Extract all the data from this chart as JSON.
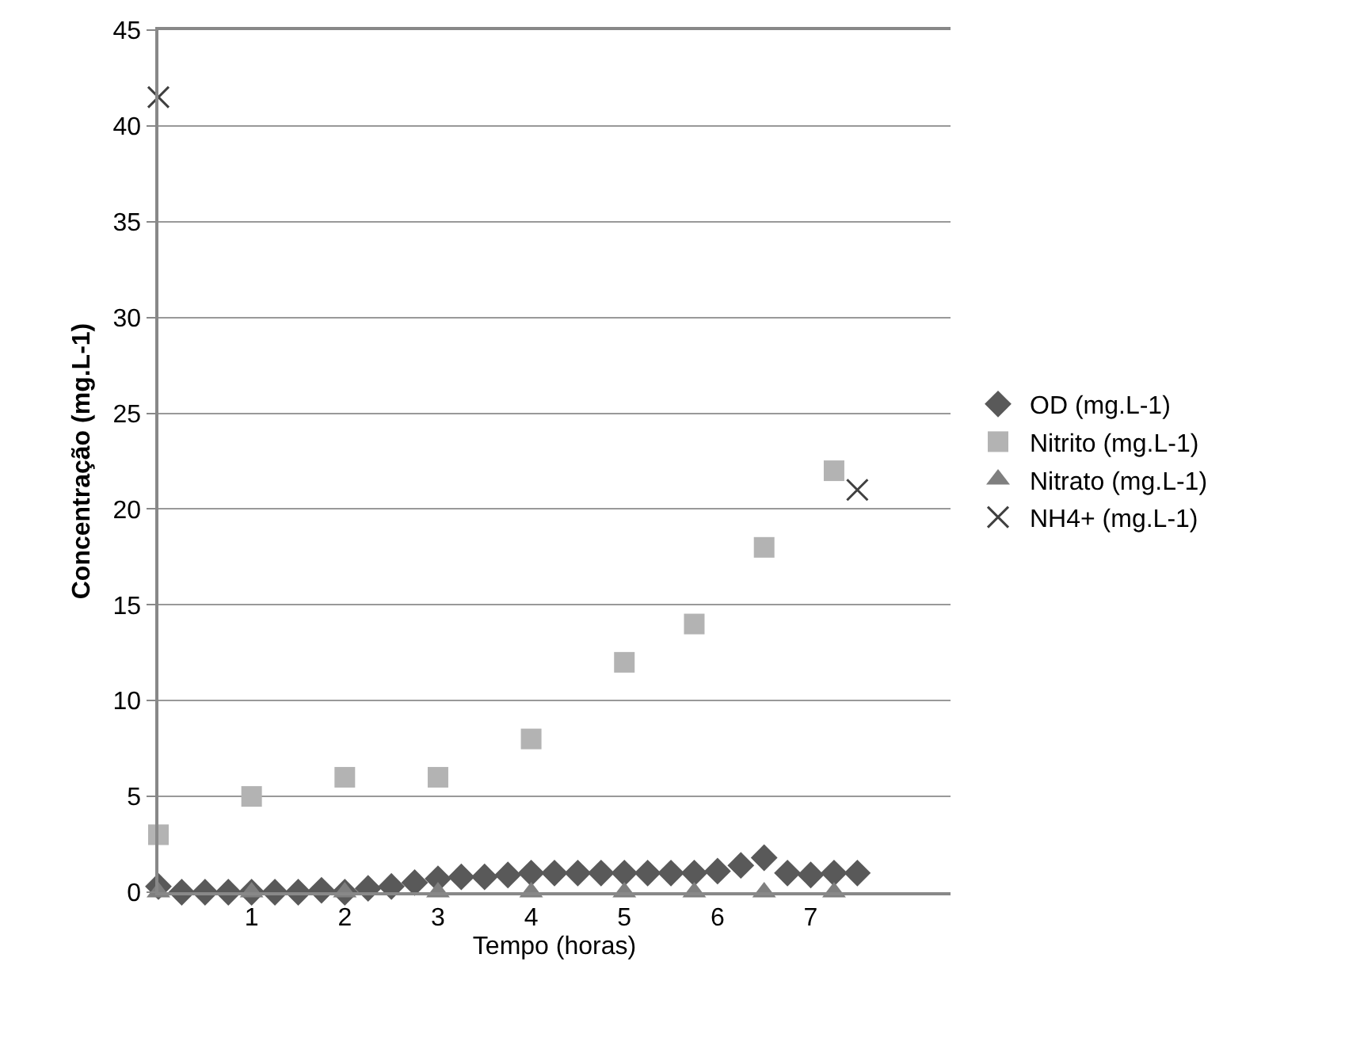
{
  "chart_data": {
    "type": "scatter",
    "xlabel": "Tempo (horas)",
    "ylabel": "Concentração (mg.L-1)",
    "xlim": [
      0,
      8.5
    ],
    "xticks": [
      1,
      2,
      3,
      4,
      5,
      6,
      7
    ],
    "ylim": [
      0,
      45
    ],
    "yticks": [
      0,
      5,
      10,
      15,
      20,
      25,
      30,
      35,
      40,
      45
    ],
    "grid": "y",
    "legend": "right",
    "series": [
      {
        "name": "OD (mg.L-1)",
        "color": "#595959",
        "marker": "diamond",
        "x": [
          0,
          0.25,
          0.5,
          0.75,
          1,
          1.25,
          1.5,
          1.75,
          2,
          2.25,
          2.5,
          2.75,
          3,
          3.25,
          3.5,
          3.75,
          4,
          4.25,
          4.5,
          4.75,
          5,
          5.25,
          5.5,
          5.75,
          6,
          6.25,
          6.5,
          6.75,
          7,
          7.25,
          7.5
        ],
        "values": [
          0.3,
          0,
          0,
          0,
          0,
          0,
          0,
          0.1,
          0,
          0.2,
          0.3,
          0.5,
          0.7,
          0.8,
          0.8,
          0.9,
          1,
          1,
          1,
          1,
          1,
          1,
          1,
          1,
          1.1,
          1.4,
          1.8,
          1,
          0.9,
          1,
          1
        ]
      },
      {
        "name": "Nitrito (mg.L-1)",
        "color": "#b3b3b3",
        "marker": "square",
        "x": [
          0,
          1,
          2,
          3,
          4,
          5,
          5.75,
          6.5,
          7.25
        ],
        "values": [
          3,
          5,
          6,
          6,
          8,
          12,
          14,
          18,
          22
        ]
      },
      {
        "name": "Nitrato (mg.L-1)",
        "color": "#7f7f7f",
        "marker": "triangle",
        "x": [
          0,
          1,
          2,
          3,
          4,
          5,
          5.75,
          6.5,
          7.25
        ],
        "values": [
          0,
          0,
          0,
          0,
          0,
          0,
          0,
          0,
          0
        ]
      },
      {
        "name": "NH4+ (mg.L-1)",
        "color": "#404040",
        "marker": "cross",
        "x": [
          0,
          7.5
        ],
        "values": [
          41.5,
          21
        ]
      }
    ]
  }
}
